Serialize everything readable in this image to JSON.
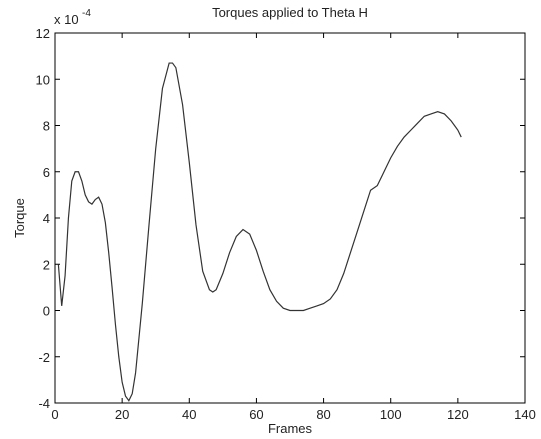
{
  "chart_data": {
    "type": "line",
    "title": "Torques applied to Theta H",
    "xlabel": "Frames",
    "ylabel": "Torque",
    "y_scale_label": {
      "base": "x 10",
      "exponent": "-4"
    },
    "x": [
      1,
      2,
      3,
      4,
      5,
      6,
      7,
      8,
      9,
      10,
      11,
      12,
      13,
      14,
      15,
      16,
      17,
      18,
      19,
      20,
      21,
      22,
      23,
      24,
      26,
      28,
      30,
      32,
      34,
      35,
      36,
      38,
      40,
      42,
      44,
      46,
      47,
      48,
      50,
      52,
      54,
      56,
      58,
      60,
      62,
      64,
      66,
      68,
      70,
      72,
      74,
      76,
      78,
      80,
      82,
      84,
      86,
      88,
      90,
      92,
      94,
      96,
      98,
      100,
      102,
      104,
      106,
      108,
      110,
      112,
      114,
      116,
      118,
      120,
      121
    ],
    "series": [
      {
        "name": "Torque",
        "color": "#333333",
        "values": [
          2.0,
          0.2,
          1.5,
          4.0,
          5.6,
          6.0,
          6.0,
          5.6,
          5.0,
          4.7,
          4.6,
          4.8,
          4.9,
          4.6,
          3.8,
          2.5,
          1.0,
          -0.6,
          -2.0,
          -3.1,
          -3.7,
          -3.9,
          -3.6,
          -2.7,
          0.3,
          3.7,
          7.0,
          9.6,
          10.7,
          10.7,
          10.5,
          8.9,
          6.4,
          3.7,
          1.7,
          0.9,
          0.8,
          0.9,
          1.6,
          2.5,
          3.2,
          3.5,
          3.3,
          2.6,
          1.7,
          0.9,
          0.4,
          0.1,
          0.0,
          0.0,
          0.0,
          0.1,
          0.2,
          0.3,
          0.5,
          0.9,
          1.6,
          2.5,
          3.4,
          4.3,
          5.2,
          5.4,
          6.0,
          6.6,
          7.1,
          7.5,
          7.8,
          8.1,
          8.4,
          8.5,
          8.6,
          8.5,
          8.2,
          7.8,
          7.5
        ]
      }
    ],
    "xlim": [
      0,
      140
    ],
    "xticks": [
      0,
      20,
      40,
      60,
      80,
      100,
      120,
      140
    ],
    "ylim": [
      -4,
      12
    ],
    "yticks": [
      -4,
      -2,
      0,
      2,
      4,
      6,
      8,
      10,
      12
    ],
    "grid": false
  }
}
